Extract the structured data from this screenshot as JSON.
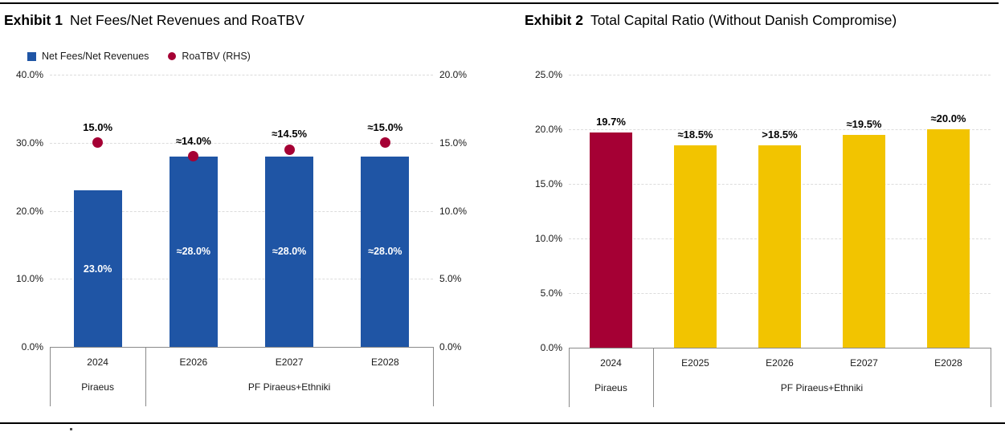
{
  "exhibits": [
    {
      "label": "Exhibit 1",
      "title": "Net Fees/Net Revenues and RoaTBV"
    },
    {
      "label": "Exhibit 2",
      "title": "Total Capital Ratio (Without Danish Compromise)"
    }
  ],
  "chart_data": [
    {
      "type": "bar",
      "title": "Exhibit 1",
      "subtitle": "Net Fees/Net Revenues and RoaTBV",
      "categories": [
        "2024",
        "E2026",
        "E2027",
        "E2028"
      ],
      "group_labels": [
        {
          "label": "Piraeus",
          "span": 1
        },
        {
          "label": "PF Piraeus+Ethniki",
          "span": 3
        }
      ],
      "series": [
        {
          "name": "Net Fees/Net Revenues",
          "type": "bar",
          "axis": "left",
          "color": "#1f55a5",
          "values": [
            23.0,
            28.0,
            28.0,
            28.0
          ],
          "labels": [
            "23.0%",
            "≈28.0%",
            "≈28.0%",
            "≈28.0%"
          ],
          "label_position": "inside-middle"
        },
        {
          "name": "RoaTBV (RHS)",
          "type": "scatter",
          "axis": "right",
          "color": "#a50034",
          "values": [
            15.0,
            14.0,
            14.5,
            15.0
          ],
          "labels": [
            "15.0%",
            "≈14.0%",
            "≈14.5%",
            "≈15.0%"
          ],
          "label_position": "above"
        }
      ],
      "left_axis": {
        "min": 0,
        "max": 40,
        "ticks": [
          "40.0%",
          "30.0%",
          "20.0%",
          "10.0%",
          "0.0%"
        ]
      },
      "right_axis": {
        "min": 0,
        "max": 20,
        "ticks": [
          "20.0%",
          "15.0%",
          "10.0%",
          "5.0%",
          "0.0%"
        ]
      },
      "grid": true,
      "show_legend": true,
      "legend_position": "top-left"
    },
    {
      "type": "bar",
      "title": "Exhibit 2",
      "subtitle": "Total Capital Ratio (Without Danish Compromise)",
      "categories": [
        "2024",
        "E2025",
        "E2026",
        "E2027",
        "E2028"
      ],
      "group_labels": [
        {
          "label": "Piraeus",
          "span": 1
        },
        {
          "label": "PF Piraeus+Ethniki",
          "span": 4
        }
      ],
      "series": [
        {
          "name": "Total Capital Ratio",
          "type": "bar",
          "axis": "left",
          "colors": [
            "#a50034",
            "#f2c400",
            "#f2c400",
            "#f2c400",
            "#f2c400"
          ],
          "values": [
            19.7,
            18.5,
            18.5,
            19.5,
            20.0
          ],
          "labels": [
            "19.7%",
            "≈18.5%",
            ">18.5%",
            "≈19.5%",
            "≈20.0%"
          ],
          "label_position": "above"
        }
      ],
      "left_axis": {
        "min": 0,
        "max": 25,
        "ticks": [
          "25.0%",
          "20.0%",
          "15.0%",
          "10.0%",
          "5.0%",
          "0.0%"
        ]
      },
      "grid": true,
      "show_legend": false
    }
  ],
  "colors": {
    "bar_blue": "#1f55a5",
    "accent_red": "#a50034",
    "bar_yellow": "#f2c400"
  }
}
